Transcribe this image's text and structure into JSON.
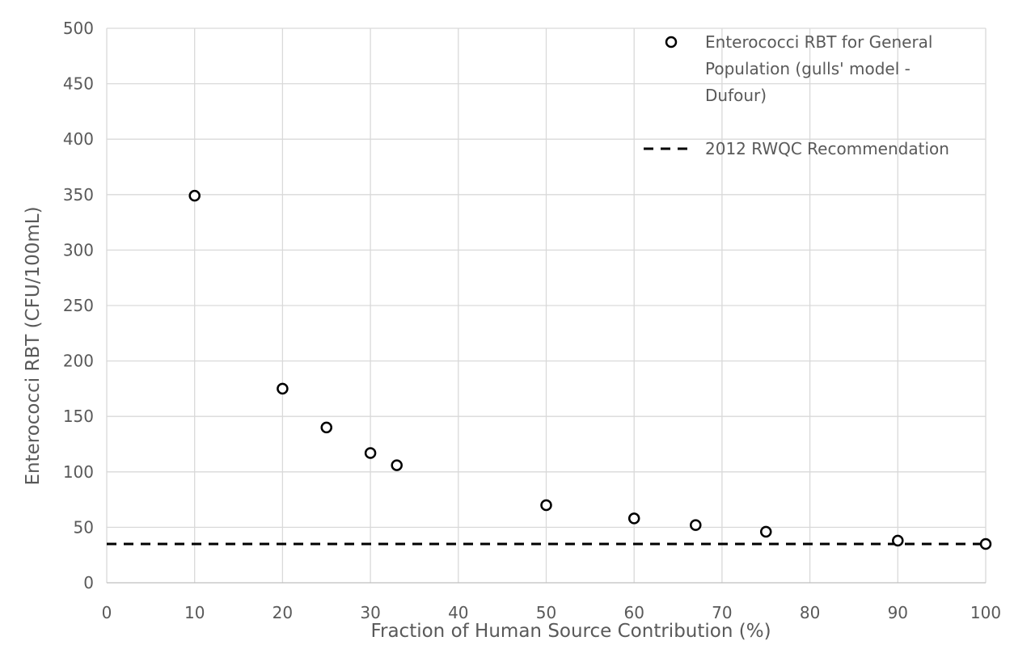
{
  "chart_data": {
    "type": "scatter",
    "title": "",
    "xlabel": "Fraction of Human Source Contribution (%)",
    "ylabel": "Enterococci RBT (CFU/100mL)",
    "xlim": [
      0,
      100
    ],
    "ylim": [
      0,
      500
    ],
    "x_ticks": [
      0,
      10,
      20,
      30,
      40,
      50,
      60,
      70,
      80,
      90,
      100
    ],
    "y_ticks": [
      0,
      50,
      100,
      150,
      200,
      250,
      300,
      350,
      400,
      450,
      500
    ],
    "grid": true,
    "legend_position": "top-right",
    "series": [
      {
        "name": "Enterococci RBT for General Population (gulls' model - Dufour)",
        "legend_lines": [
          "Enterococci RBT for General",
          "Population (gulls' model -",
          "Dufour)"
        ],
        "marker": "open-circle",
        "color": "#000000",
        "x": [
          10,
          20,
          25,
          30,
          33,
          50,
          60,
          67,
          75,
          90,
          100
        ],
        "y": [
          349,
          175,
          140,
          117,
          106,
          70,
          58,
          52,
          46,
          38,
          35
        ]
      },
      {
        "name": "2012 RWQC Recommendation",
        "style": "dashed-line",
        "color": "#000000",
        "y_constant": 35
      }
    ]
  }
}
